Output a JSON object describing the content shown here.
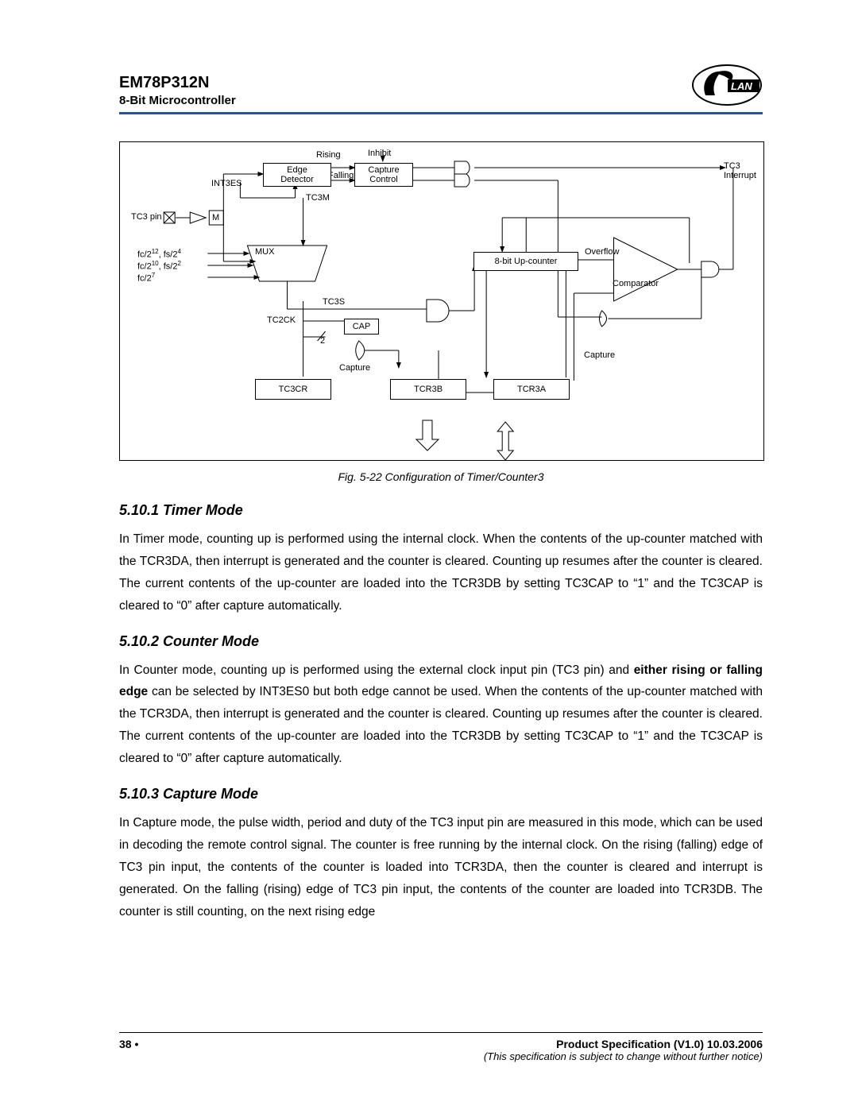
{
  "header": {
    "part_number": "EM78P312N",
    "subtitle": "8-Bit Microcontroller",
    "logo_text": "LAN"
  },
  "diagram": {
    "caption": "Fig. 5-22  Configuration of Timer/Counter3",
    "labels": {
      "rising": "Rising",
      "inhibit": "Inhibit",
      "falling": "Falling",
      "edge_detector": "Edge Detector",
      "capture_control": "Capture Control",
      "int3es": "INT3ES",
      "tc3m": "TC3M",
      "tc3_pin": "TC3 pin",
      "m": "M",
      "mux": "MUX",
      "fc212": "fc/2",
      "fc212_exp": "12",
      "fs24": "fs/2",
      "fs24_exp": "4",
      "fc210": "fc/2",
      "fc210_exp": "10",
      "fs22": "fs/2",
      "fs22_exp": "2",
      "fc27": "fc/2",
      "fc27_exp": "7",
      "upcounter": "8-bit Up-counter",
      "overflow": "Overflow",
      "tc3s": "TC3S",
      "tc2ck": "TC2CK",
      "cap": "CAP",
      "two": "2",
      "capture1": "Capture",
      "capture2": "Capture",
      "comparator": "Comparator",
      "tc3cr": "TC3CR",
      "tcr3b": "TCR3B",
      "tcr3a": "TCR3A",
      "tc3_interrupt": "TC3 Interrupt"
    },
    "style": {
      "border_color": "#000000",
      "background": "#ffffff",
      "font_size": 11
    }
  },
  "sections": [
    {
      "heading": "5.10.1  Timer Mode",
      "text": "In Timer mode, counting up is performed using the internal clock.  When the contents of the up-counter matched with the TCR3DA, then interrupt is generated and the counter is cleared.  Counting up resumes after the counter is cleared.  The current contents of the up-counter are loaded into the TCR3DB by setting TC3CAP to “1” and the TC3CAP is cleared to “0” after capture automatically."
    },
    {
      "heading": "5.10.2  Counter Mode",
      "text_html": "In Counter mode, counting up is performed using the external clock input pin (TC3 pin) and <b>either rising or falling edge</b> can be selected by INT3ES0 but both edge cannot be used.  When the contents of the up-counter matched with the TCR3DA, then interrupt is generated and the counter is cleared.  Counting up resumes after the counter is cleared.  The current contents of the up-counter are loaded into the TCR3DB by setting TC3CAP to “1” and the TC3CAP is cleared to “0” after capture automatically."
    },
    {
      "heading": "5.10.3  Capture Mode",
      "text": "In Capture mode, the pulse width, period and duty of the TC3 input pin are measured in this mode, which can be used in decoding the remote control signal.  The counter is free running by the internal clock.  On the rising (falling) edge of TC3 pin input, the contents of the counter is loaded into TCR3DA, then the counter is cleared and interrupt is generated.  On the falling (rising) edge of TC3 pin input, the contents of the counter are loaded into TCR3DB.  The counter is still counting, on the next rising edge"
    }
  ],
  "footer": {
    "page": "38",
    "bullet": "•",
    "spec": "Product Specification (V1.0) 10.03.2006",
    "notice": "(This specification is subject to change without further notice)"
  }
}
